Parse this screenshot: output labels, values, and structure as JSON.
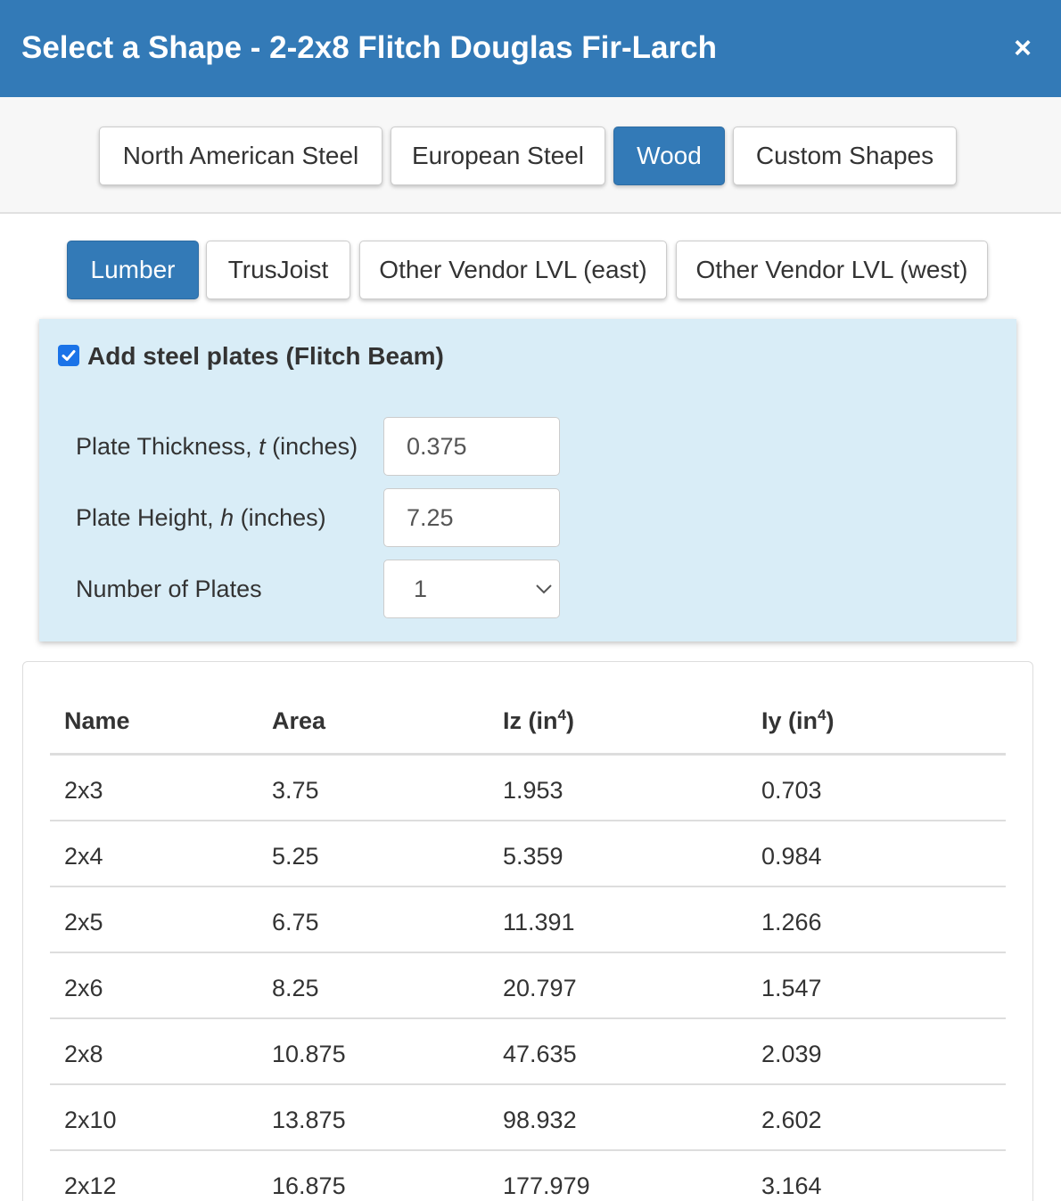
{
  "dialog": {
    "title": "Select a Shape - 2-2x8 Flitch Douglas Fir-Larch",
    "close_label": "×"
  },
  "category_tabs": [
    {
      "label": "North American Steel",
      "active": false
    },
    {
      "label": "European Steel",
      "active": false
    },
    {
      "label": "Wood",
      "active": true
    },
    {
      "label": "Custom Shapes",
      "active": false
    }
  ],
  "wood_tabs": [
    {
      "label": "Lumber",
      "active": true
    },
    {
      "label": "TrusJoist",
      "active": false
    },
    {
      "label": "Other Vendor LVL (east)",
      "active": false
    },
    {
      "label": "Other Vendor LVL (west)",
      "active": false
    }
  ],
  "flitch": {
    "checkbox_label": "Add steel plates (Flitch Beam)",
    "checked": true,
    "thickness": {
      "label_prefix": "Plate Thickness, ",
      "symbol": "t",
      "label_suffix": " (inches)",
      "value": "0.375"
    },
    "height": {
      "label_prefix": "Plate Height, ",
      "symbol": "h",
      "label_suffix": " (inches)",
      "value": "7.25"
    },
    "plates": {
      "label": "Number of Plates",
      "value": "1"
    }
  },
  "table": {
    "headers": [
      {
        "text": "Name",
        "sup": ""
      },
      {
        "text": "Area",
        "sup": ""
      },
      {
        "text": "Iz (in",
        "sup": "4",
        "close": ")"
      },
      {
        "text": "Iy (in",
        "sup": "4",
        "close": ")"
      }
    ],
    "rows": [
      [
        "2x3",
        "3.75",
        "1.953",
        "0.703"
      ],
      [
        "2x4",
        "5.25",
        "5.359",
        "0.984"
      ],
      [
        "2x5",
        "6.75",
        "11.391",
        "1.266"
      ],
      [
        "2x6",
        "8.25",
        "20.797",
        "1.547"
      ],
      [
        "2x8",
        "10.875",
        "47.635",
        "2.039"
      ],
      [
        "2x10",
        "13.875",
        "98.932",
        "2.602"
      ],
      [
        "2x12",
        "16.875",
        "177.979",
        "3.164"
      ]
    ]
  },
  "colors": {
    "header": "#337ab7",
    "panel": "#d9edf7",
    "checkbox": "#1a73e8"
  }
}
